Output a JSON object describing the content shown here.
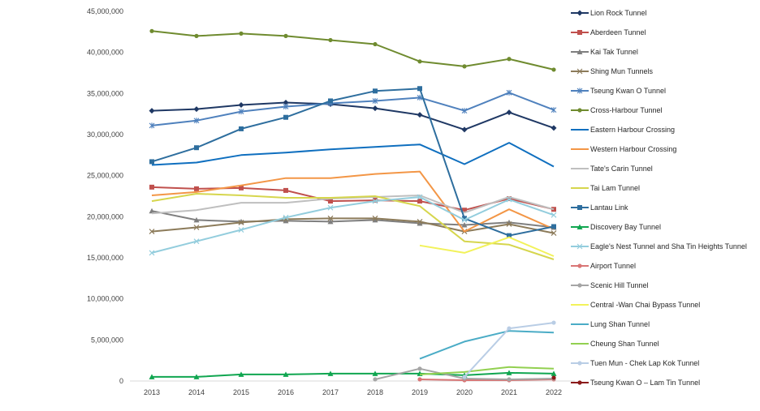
{
  "chart_data": {
    "type": "line",
    "title": "",
    "xlabel": "",
    "ylabel": "",
    "x": [
      "2013",
      "2014",
      "2015",
      "2016",
      "2017",
      "2018",
      "2019",
      "2020",
      "2021",
      "2022"
    ],
    "ylim": [
      0,
      45000000
    ],
    "yticks": [
      0,
      5000000,
      10000000,
      15000000,
      20000000,
      25000000,
      30000000,
      35000000,
      40000000,
      45000000
    ],
    "ytick_labels": [
      "0",
      "5,000,000",
      "10,000,000",
      "15,000,000",
      "20,000,000",
      "25,000,000",
      "30,000,000",
      "35,000,000",
      "40,000,000",
      "45,000,000"
    ],
    "grid": false,
    "legend_position": "right",
    "series": [
      {
        "name": "Lion Rock Tunnel",
        "color": "#1f3864",
        "marker": "diamond",
        "values": [
          32900000,
          33100000,
          33600000,
          33900000,
          33700000,
          33200000,
          32400000,
          30600000,
          32700000,
          30800000
        ]
      },
      {
        "name": "Aberdeen Tunnel",
        "color": "#c0504d",
        "marker": "square",
        "values": [
          23600000,
          23400000,
          23500000,
          23200000,
          21900000,
          22000000,
          21900000,
          20800000,
          22200000,
          20900000
        ]
      },
      {
        "name": "Kai Tak Tunnel",
        "color": "#7f7f7f",
        "marker": "triangle",
        "values": [
          20700000,
          19600000,
          19400000,
          19500000,
          19400000,
          19600000,
          19200000,
          19000000,
          19300000,
          18700000
        ]
      },
      {
        "name": "Shing Mun Tunnels",
        "color": "#8c7b5a",
        "marker": "x",
        "values": [
          18200000,
          18700000,
          19300000,
          19700000,
          19800000,
          19800000,
          19400000,
          18200000,
          19100000,
          18000000
        ]
      },
      {
        "name": "Tseung Kwan O Tunnel",
        "color": "#4f81bd",
        "marker": "star",
        "values": [
          31100000,
          31700000,
          32800000,
          33400000,
          33800000,
          34100000,
          34500000,
          32900000,
          35100000,
          33000000
        ]
      },
      {
        "name": "Cross-Harbour Tunnel",
        "color": "#6f8b2f",
        "marker": "circle",
        "values": [
          42600000,
          42000000,
          42300000,
          42000000,
          41500000,
          41000000,
          38900000,
          38300000,
          39200000,
          37900000
        ]
      },
      {
        "name": "Eastern Harbour Crossing",
        "color": "#0f6fbf",
        "marker": "none",
        "values": [
          26300000,
          26600000,
          27500000,
          27800000,
          28200000,
          28500000,
          28800000,
          26400000,
          29000000,
          26100000
        ]
      },
      {
        "name": "Western Harbour Crossing",
        "color": "#f39646",
        "marker": "none",
        "values": [
          22600000,
          23000000,
          23800000,
          24700000,
          24700000,
          25200000,
          25500000,
          18200000,
          20900000,
          18500000
        ]
      },
      {
        "name": "Tate's Carin Tunnel",
        "color": "#bfbfbf",
        "marker": "none",
        "values": [
          20400000,
          20800000,
          21700000,
          21700000,
          22200000,
          22400000,
          22600000,
          20500000,
          22400000,
          20900000
        ]
      },
      {
        "name": "Tai Lam Tunnel",
        "color": "#d6d64d",
        "marker": "none",
        "values": [
          21900000,
          22800000,
          22600000,
          22300000,
          22300000,
          22500000,
          21300000,
          17000000,
          16600000,
          14800000
        ]
      },
      {
        "name": "Lantau Link",
        "color": "#2e6e9e",
        "marker": "square",
        "values": [
          26700000,
          28400000,
          30700000,
          32100000,
          34100000,
          35300000,
          35600000,
          19800000,
          17700000,
          18800000
        ]
      },
      {
        "name": "Discovery Bay Tunnel",
        "color": "#10a650",
        "marker": "triangle",
        "values": [
          500000,
          500000,
          800000,
          800000,
          900000,
          900000,
          900000,
          700000,
          1000000,
          900000
        ]
      },
      {
        "name": "Eagle's Nest Tunnel and Sha Tin Heights Tunnel",
        "color": "#93cddd",
        "marker": "x",
        "values": [
          15600000,
          17000000,
          18400000,
          19900000,
          21100000,
          21900000,
          22400000,
          19600000,
          22100000,
          20200000
        ]
      },
      {
        "name": "Airport Tunnel",
        "color": "#d97575",
        "marker": "circle",
        "values": [
          null,
          null,
          null,
          null,
          null,
          null,
          200000,
          100000,
          100000,
          200000
        ]
      },
      {
        "name": "Scenic Hill Tunnel",
        "color": "#a5a5a5",
        "marker": "circle",
        "values": [
          null,
          null,
          null,
          null,
          null,
          200000,
          1500000,
          300000,
          200000,
          300000
        ]
      },
      {
        "name": "Central -Wan Chai Bypass Tunnel",
        "color": "#f2f25a",
        "marker": "none",
        "values": [
          null,
          null,
          null,
          null,
          null,
          null,
          16500000,
          15600000,
          17500000,
          15200000
        ]
      },
      {
        "name": "Lung Shan Tunnel",
        "color": "#4bacc6",
        "marker": "none",
        "values": [
          null,
          null,
          null,
          null,
          null,
          null,
          2700000,
          4800000,
          6100000,
          5900000
        ]
      },
      {
        "name": "Cheung Shan Tunnel",
        "color": "#92d050",
        "marker": "none",
        "values": [
          null,
          null,
          null,
          null,
          null,
          null,
          800000,
          1100000,
          1700000,
          1500000
        ]
      },
      {
        "name": "Tuen Mun - Chek Lap Kok Tunnel",
        "color": "#b9cde5",
        "marker": "circle",
        "values": [
          null,
          null,
          null,
          null,
          null,
          null,
          null,
          500000,
          6400000,
          7100000
        ]
      },
      {
        "name": "Tseung Kwan O – Lam Tin Tunnel",
        "color": "#8b1a1a",
        "marker": "circle",
        "values": [
          null,
          null,
          null,
          null,
          null,
          null,
          null,
          null,
          null,
          400000
        ]
      }
    ]
  }
}
